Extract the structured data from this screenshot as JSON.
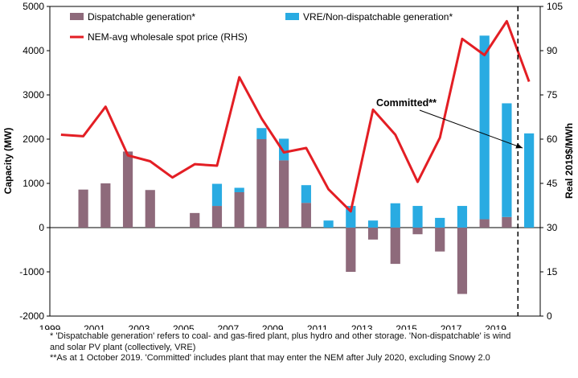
{
  "chart_data": {
    "type": "bar+line",
    "categories": [
      "1999",
      "2000",
      "2001",
      "2002",
      "2003",
      "2004",
      "2005",
      "2006",
      "2007",
      "2008",
      "2009",
      "2010",
      "2011",
      "2012",
      "2013",
      "2014",
      "2015",
      "2016",
      "2017",
      "2018",
      "2019",
      "2020"
    ],
    "x_tick_labels": [
      "1999",
      "2001",
      "2003",
      "2005",
      "2007",
      "2009",
      "2011",
      "2013",
      "2015",
      "2017",
      "2019"
    ],
    "series": [
      {
        "name": "Dispatchable generation*",
        "type": "bar",
        "axis": "left",
        "color": "#8e6a7b",
        "values": [
          0,
          860,
          1000,
          1720,
          850,
          0,
          330,
          490,
          800,
          2000,
          1520,
          560,
          0,
          -1000,
          -270,
          -820,
          -150,
          -540,
          -1500,
          190,
          240,
          0
        ]
      },
      {
        "name": "VRE/Non-dispatchable generation*",
        "type": "bar",
        "axis": "left",
        "stacked": true,
        "color": "#29abe2",
        "values": [
          0,
          0,
          0,
          0,
          0,
          0,
          0,
          500,
          100,
          250,
          490,
          400,
          160,
          490,
          160,
          550,
          490,
          220,
          490,
          4150,
          2570,
          2130
        ]
      },
      {
        "name": "NEM-avg wholesale spot price (RHS)",
        "type": "line",
        "axis": "right",
        "color": "#e31e24",
        "values": [
          61.5,
          61,
          71,
          54.5,
          52.5,
          47,
          51.5,
          51,
          81,
          67,
          55.5,
          57,
          43,
          35.5,
          70,
          61.5,
          45.5,
          60.5,
          94,
          88.5,
          100,
          79.5
        ]
      }
    ],
    "left_axis": {
      "label": "Capacity (MW)",
      "min": -2000,
      "max": 5000,
      "step": 1000
    },
    "right_axis": {
      "label": "Real 2019$/MWh",
      "min": 0,
      "max": 105,
      "step": 15
    },
    "annotation": {
      "text": "Committed**",
      "points_to": "2020"
    },
    "dashed_vline_between": [
      "2019",
      "2020"
    ],
    "legend_position": "top-left",
    "grid": false
  },
  "footnotes": {
    "line1": "* 'Dispatchable generation' refers to coal- and gas-fired plant, plus hydro and other storage. 'Non-dispatchable' is wind",
    "line2": "and solar PV plant (collectively,  VRE)",
    "line3": "**As at 1 October 2019. 'Committed' includes plant that may enter the NEM after July 2020, excluding Snowy 2.0"
  }
}
